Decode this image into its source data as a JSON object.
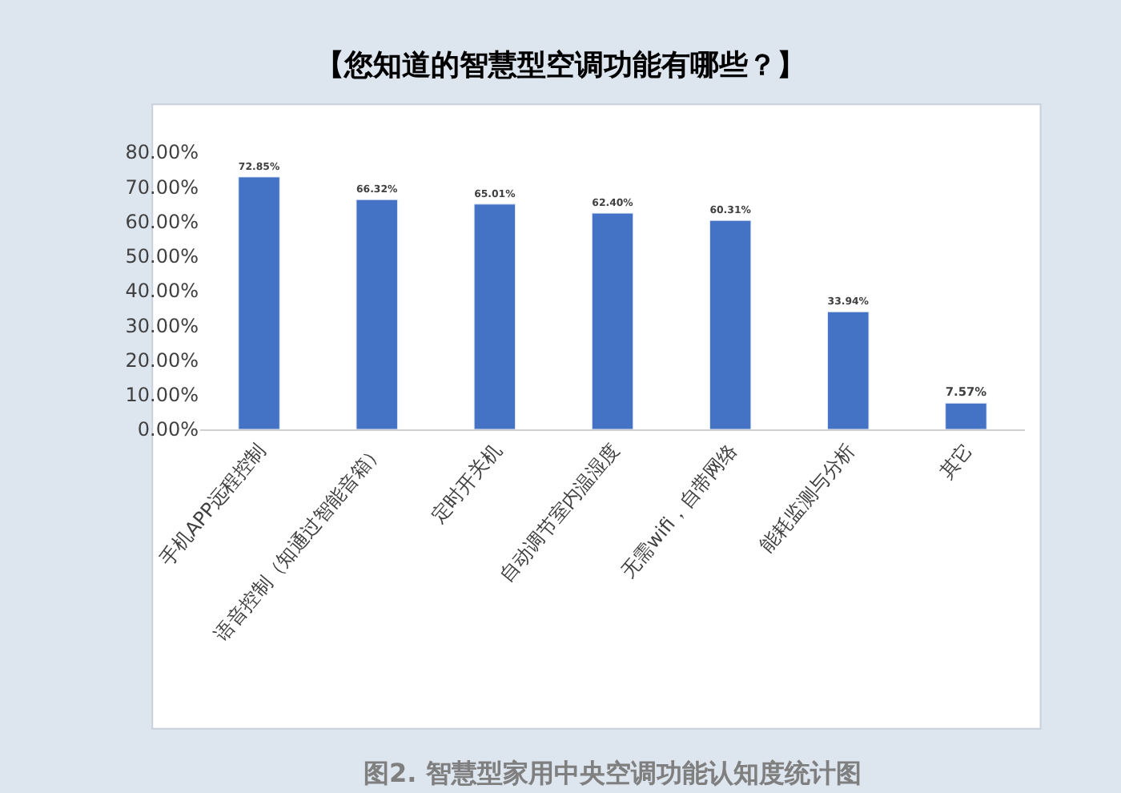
{
  "chart_data": {
    "type": "bar",
    "title": "【您知道的智慧型空调功能有哪些？】",
    "categories": [
      "手机APP远程控制",
      "语音控制（知通过智能音箱）",
      "定时开关机",
      "自动调节室内温湿度",
      "无需wifi，自带网络",
      "能耗监测与分析",
      "其它"
    ],
    "series": [
      {
        "color": "#4472c4",
        "values": [
          72.85,
          66.32,
          65.01,
          62.4,
          60.31,
          33.94,
          7.57
        ],
        "value_labels": [
          "72.85%",
          "66.32%",
          "65.01%",
          "62.40%",
          "60.31%",
          "33.94%",
          "7.57%"
        ]
      }
    ],
    "ylim": [
      0,
      80
    ],
    "yticks": [
      {
        "value": 0,
        "label": "0.00%"
      },
      {
        "value": 10,
        "label": "10.00%"
      },
      {
        "value": 20,
        "label": "20.00%"
      },
      {
        "value": 30,
        "label": "30.00%"
      },
      {
        "value": 40,
        "label": "40.00%"
      },
      {
        "value": 50,
        "label": "50.00%"
      },
      {
        "value": 60,
        "label": "60.00%"
      },
      {
        "value": 70,
        "label": "70.00%"
      },
      {
        "value": 80,
        "label": "80.00%"
      }
    ],
    "annotations": [
      "图2. 智慧型家用中央空调功能认知度统计图"
    ]
  }
}
